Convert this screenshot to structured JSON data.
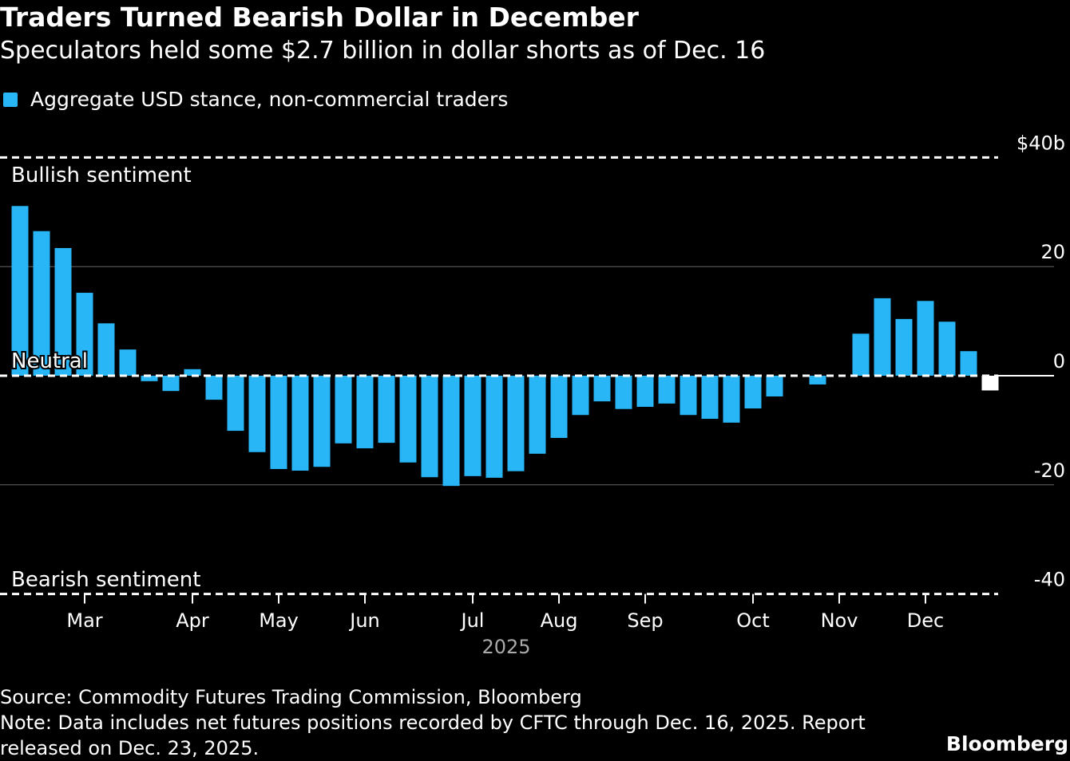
{
  "title": "Traders Turned Bearish Dollar in December",
  "subtitle": "Speculators held some $2.7 billion in dollar shorts as of Dec. 16",
  "source": "Source: Commodity Futures Trading Commission, Bloomberg",
  "note_line1": "Note: Data includes net futures positions recorded by CFTC through Dec. 16, 2025. Report",
  "note_line2": "released on Dec. 23, 2025.",
  "brand": "Bloomberg",
  "chart_data": {
    "type": "bar",
    "legend": [
      {
        "name": "Aggregate USD stance, non-commercial traders",
        "color": "#29b6f6"
      }
    ],
    "legend_placement": "top-left",
    "x": [
      "2025-02-04",
      "2025-02-11",
      "2025-02-18",
      "2025-02-25",
      "2025-03-04",
      "2025-03-11",
      "2025-03-18",
      "2025-03-25",
      "2025-04-01",
      "2025-04-08",
      "2025-04-15",
      "2025-04-22",
      "2025-04-29",
      "2025-05-06",
      "2025-05-13",
      "2025-05-20",
      "2025-05-27",
      "2025-06-03",
      "2025-06-10",
      "2025-06-17",
      "2025-06-24",
      "2025-07-01",
      "2025-07-08",
      "2025-07-15",
      "2025-07-22",
      "2025-07-29",
      "2025-08-05",
      "2025-08-12",
      "2025-08-19",
      "2025-08-26",
      "2025-09-02",
      "2025-09-09",
      "2025-09-16",
      "2025-09-23",
      "2025-09-30",
      "2025-10-07",
      "2025-10-14",
      "2025-10-21",
      "2025-10-28",
      "2025-11-04",
      "2025-11-11",
      "2025-11-18",
      "2025-11-25",
      "2025-12-02",
      "2025-12-09",
      "2025-12-16"
    ],
    "values": [
      31.1,
      26.5,
      23.4,
      15.2,
      9.6,
      4.8,
      -1.0,
      -2.8,
      1.2,
      -4.4,
      -10.1,
      -14.0,
      -17.1,
      -17.4,
      -16.7,
      -12.4,
      -13.3,
      -12.3,
      -15.9,
      -18.6,
      -20.2,
      -18.4,
      -18.7,
      -17.5,
      -14.3,
      -11.4,
      -7.2,
      -4.7,
      -6.1,
      -5.7,
      -5.1,
      -7.2,
      -7.9,
      -8.6,
      -6.0,
      -3.8,
      null,
      -1.6,
      null,
      7.7,
      14.2,
      10.4,
      13.7,
      9.9,
      4.5,
      -2.7
    ],
    "highlight": {
      "date": "2025-12-16",
      "color": "#ffffff"
    },
    "bar_color": "#29b6f6",
    "ylim": [
      -40,
      40
    ],
    "yticks": [
      {
        "value": 40,
        "label": "$40b"
      },
      {
        "value": 20,
        "label": "20"
      },
      {
        "value": 0,
        "label": "0"
      },
      {
        "value": -20,
        "label": "-20"
      },
      {
        "value": -40,
        "label": "-40"
      }
    ],
    "xticks": [
      {
        "date": "2025-02-25",
        "label": "Mar"
      },
      {
        "date": "2025-04-01",
        "label": "Apr"
      },
      {
        "date": "2025-04-29",
        "label": "May"
      },
      {
        "date": "2025-05-27",
        "label": "Jun"
      },
      {
        "date": "2025-07-01",
        "label": "Jul"
      },
      {
        "date": "2025-07-29",
        "label": "Aug"
      },
      {
        "date": "2025-08-26",
        "label": "Sep"
      },
      {
        "date": "2025-09-30",
        "label": "Oct"
      },
      {
        "date": "2025-10-28",
        "label": "Nov"
      },
      {
        "date": "2025-11-25",
        "label": "Dec"
      }
    ],
    "xlabel": "2025",
    "annotations": {
      "top": "Bullish sentiment",
      "zero": "Neutral",
      "bottom": "Bearish sentiment"
    },
    "grid": true
  }
}
